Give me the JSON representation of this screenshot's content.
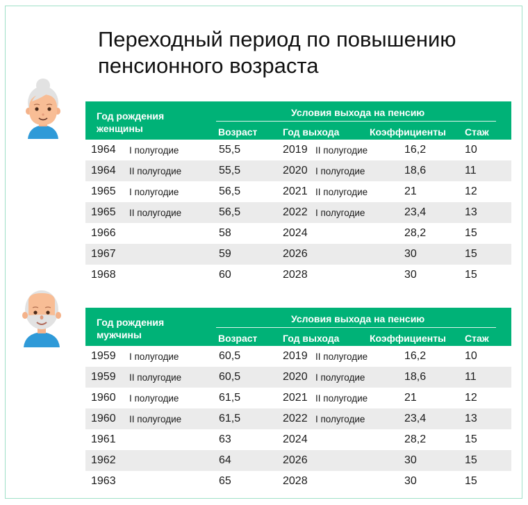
{
  "title": {
    "line1": "Переходный период по повышению",
    "line2": "пенсионного возраста"
  },
  "colors": {
    "header_bg": "#00b277",
    "border": "#9fe0c8",
    "alt_row": "#ebebeb"
  },
  "women": {
    "avatar": "elderly-woman-icon",
    "header": {
      "birth_line1": "Год рождения",
      "birth_line2": "женщины",
      "conditions": "Условия выхода на пенсию",
      "age": "Возраст",
      "year": "Год выхода",
      "coef": "Коэффициенты",
      "exp": "Стаж"
    },
    "rows": [
      {
        "birth": "1964",
        "birth_half": "I полугодие",
        "age": "55,5",
        "year": "2019",
        "year_half": "II полугодие",
        "coef": "16,2",
        "exp": "10"
      },
      {
        "birth": "1964",
        "birth_half": "II полугодие",
        "age": "55,5",
        "year": "2020",
        "year_half": "I полугодие",
        "coef": "18,6",
        "exp": "11"
      },
      {
        "birth": "1965",
        "birth_half": "I полугодие",
        "age": "56,5",
        "year": "2021",
        "year_half": "II полугодие",
        "coef": "21",
        "exp": "12"
      },
      {
        "birth": "1965",
        "birth_half": "II полугодие",
        "age": "56,5",
        "year": "2022",
        "year_half": "I полугодие",
        "coef": "23,4",
        "exp": "13"
      },
      {
        "birth": "1966",
        "birth_half": "",
        "age": "58",
        "year": "2024",
        "year_half": "",
        "coef": "28,2",
        "exp": "15"
      },
      {
        "birth": "1967",
        "birth_half": "",
        "age": "59",
        "year": "2026",
        "year_half": "",
        "coef": "30",
        "exp": "15"
      },
      {
        "birth": "1968",
        "birth_half": "",
        "age": "60",
        "year": "2028",
        "year_half": "",
        "coef": "30",
        "exp": "15"
      }
    ]
  },
  "men": {
    "avatar": "elderly-man-icon",
    "header": {
      "birth_line1": "Год рождения",
      "birth_line2": "мужчины",
      "conditions": "Условия выхода на пенсию",
      "age": "Возраст",
      "year": "Год выхода",
      "coef": "Коэффициенты",
      "exp": "Стаж"
    },
    "rows": [
      {
        "birth": "1959",
        "birth_half": "I полугодие",
        "age": "60,5",
        "year": "2019",
        "year_half": "II полугодие",
        "coef": "16,2",
        "exp": "10"
      },
      {
        "birth": "1959",
        "birth_half": "II полугодие",
        "age": "60,5",
        "year": "2020",
        "year_half": "I полугодие",
        "coef": "18,6",
        "exp": "11"
      },
      {
        "birth": "1960",
        "birth_half": "I полугодие",
        "age": "61,5",
        "year": "2021",
        "year_half": "II полугодие",
        "coef": "21",
        "exp": "12"
      },
      {
        "birth": "1960",
        "birth_half": "II полугодие",
        "age": "61,5",
        "year": "2022",
        "year_half": "I полугодие",
        "coef": "23,4",
        "exp": "13"
      },
      {
        "birth": "1961",
        "birth_half": "",
        "age": "63",
        "year": "2024",
        "year_half": "",
        "coef": "28,2",
        "exp": "15"
      },
      {
        "birth": "1962",
        "birth_half": "",
        "age": "64",
        "year": "2026",
        "year_half": "",
        "coef": "30",
        "exp": "15"
      },
      {
        "birth": "1963",
        "birth_half": "",
        "age": "65",
        "year": "2028",
        "year_half": "",
        "coef": "30",
        "exp": "15"
      }
    ]
  }
}
